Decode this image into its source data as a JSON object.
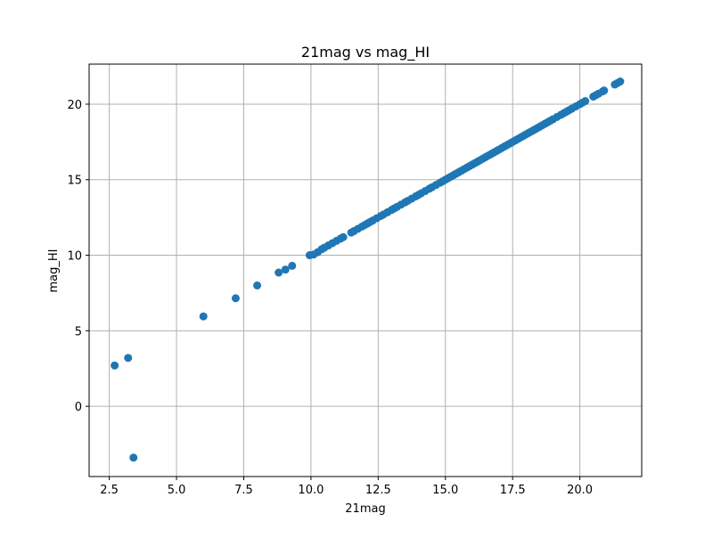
{
  "chart_data": {
    "type": "scatter",
    "title": "21mag vs mag_HI",
    "xlabel": "21mag",
    "ylabel": "mag_HI",
    "xlim": [
      1.75,
      22.3
    ],
    "ylim": [
      -4.65,
      22.65
    ],
    "grid": true,
    "xticks": [
      2.5,
      5.0,
      7.5,
      10.0,
      12.5,
      15.0,
      17.5,
      20.0
    ],
    "xtick_labels": [
      "2.5",
      "5.0",
      "7.5",
      "10.0",
      "12.5",
      "15.0",
      "17.5",
      "20.0"
    ],
    "yticks": [
      0,
      5,
      10,
      15,
      20
    ],
    "ytick_labels": [
      "0",
      "5",
      "10",
      "15",
      "20"
    ],
    "series": [
      {
        "color": "#1f77b4",
        "points": [
          [
            2.7,
            2.7
          ],
          [
            3.2,
            3.2
          ],
          [
            3.4,
            -3.4
          ],
          [
            6.0,
            5.95
          ],
          [
            7.2,
            7.15
          ],
          [
            8.0,
            8.0
          ],
          [
            8.8,
            8.85
          ],
          [
            9.05,
            9.05
          ],
          [
            9.3,
            9.3
          ],
          [
            9.95,
            10.0
          ],
          [
            10.1,
            10.05
          ],
          [
            10.25,
            10.2
          ],
          [
            10.4,
            10.4
          ],
          [
            10.5,
            10.5
          ],
          [
            10.65,
            10.65
          ],
          [
            10.8,
            10.8
          ],
          [
            10.95,
            10.95
          ],
          [
            11.1,
            11.1
          ],
          [
            11.2,
            11.2
          ],
          [
            11.5,
            11.5
          ],
          [
            11.6,
            11.6
          ],
          [
            11.75,
            11.75
          ],
          [
            11.9,
            11.9
          ],
          [
            12.0,
            12.0
          ],
          [
            12.1,
            12.1
          ],
          [
            12.2,
            12.2
          ],
          [
            12.3,
            12.3
          ],
          [
            12.45,
            12.45
          ],
          [
            12.6,
            12.6
          ],
          [
            12.7,
            12.7
          ],
          [
            12.85,
            12.85
          ],
          [
            13.0,
            13.0
          ],
          [
            13.1,
            13.1
          ],
          [
            13.2,
            13.2
          ],
          [
            13.35,
            13.35
          ],
          [
            13.5,
            13.5
          ],
          [
            13.6,
            13.6
          ],
          [
            13.75,
            13.75
          ],
          [
            13.9,
            13.9
          ],
          [
            14.0,
            14.0
          ],
          [
            14.1,
            14.1
          ],
          [
            14.25,
            14.25
          ],
          [
            14.4,
            14.4
          ],
          [
            14.5,
            14.5
          ],
          [
            14.65,
            14.65
          ],
          [
            14.8,
            14.8
          ],
          [
            14.9,
            14.9
          ],
          [
            15.0,
            15.0
          ],
          [
            15.1,
            15.1
          ],
          [
            15.2,
            15.2
          ],
          [
            15.3,
            15.3
          ],
          [
            15.4,
            15.4
          ],
          [
            15.5,
            15.5
          ],
          [
            15.6,
            15.6
          ],
          [
            15.7,
            15.7
          ],
          [
            15.8,
            15.8
          ],
          [
            15.9,
            15.9
          ],
          [
            16.0,
            16.0
          ],
          [
            16.1,
            16.1
          ],
          [
            16.2,
            16.2
          ],
          [
            16.3,
            16.3
          ],
          [
            16.4,
            16.4
          ],
          [
            16.5,
            16.5
          ],
          [
            16.6,
            16.6
          ],
          [
            16.7,
            16.7
          ],
          [
            16.8,
            16.8
          ],
          [
            16.9,
            16.9
          ],
          [
            17.0,
            17.0
          ],
          [
            17.1,
            17.1
          ],
          [
            17.2,
            17.2
          ],
          [
            17.3,
            17.3
          ],
          [
            17.4,
            17.4
          ],
          [
            17.5,
            17.5
          ],
          [
            17.6,
            17.6
          ],
          [
            17.7,
            17.7
          ],
          [
            17.8,
            17.8
          ],
          [
            17.9,
            17.9
          ],
          [
            18.0,
            18.0
          ],
          [
            18.1,
            18.1
          ],
          [
            18.2,
            18.2
          ],
          [
            18.3,
            18.3
          ],
          [
            18.4,
            18.4
          ],
          [
            18.5,
            18.5
          ],
          [
            18.6,
            18.6
          ],
          [
            18.7,
            18.7
          ],
          [
            18.8,
            18.8
          ],
          [
            18.9,
            18.9
          ],
          [
            19.0,
            19.0
          ],
          [
            19.15,
            19.15
          ],
          [
            19.3,
            19.3
          ],
          [
            19.4,
            19.4
          ],
          [
            19.5,
            19.5
          ],
          [
            19.6,
            19.6
          ],
          [
            19.7,
            19.7
          ],
          [
            19.85,
            19.85
          ],
          [
            20.0,
            20.0
          ],
          [
            20.1,
            20.1
          ],
          [
            20.2,
            20.2
          ],
          [
            20.5,
            20.5
          ],
          [
            20.6,
            20.6
          ],
          [
            20.7,
            20.7
          ],
          [
            20.85,
            20.85
          ],
          [
            20.9,
            20.9
          ],
          [
            21.3,
            21.3
          ],
          [
            21.4,
            21.4
          ],
          [
            21.5,
            21.5
          ]
        ]
      }
    ]
  }
}
